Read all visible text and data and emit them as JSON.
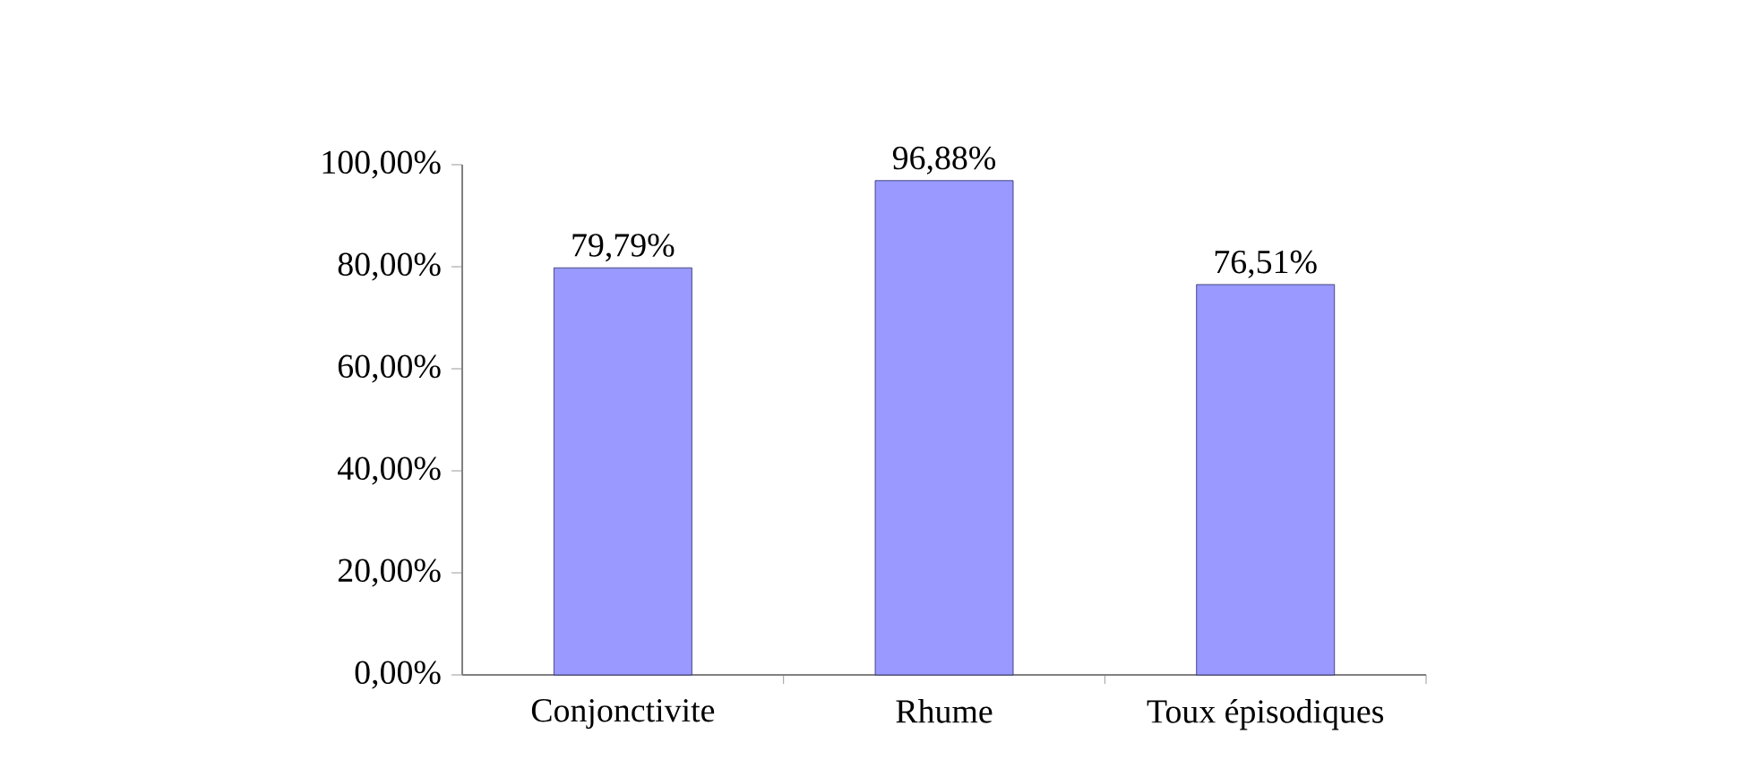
{
  "chart_data": {
    "type": "bar",
    "categories": [
      "Conjonctivite",
      "Rhume",
      "Toux épisodiques"
    ],
    "values": [
      79.79,
      96.88,
      76.51
    ],
    "value_labels": [
      "79,79%",
      "96,88%",
      "76,51%"
    ],
    "color": "#9999ff",
    "ylim": [
      0,
      100
    ],
    "yticks": [
      {
        "value": 0,
        "label": "0,00%"
      },
      {
        "value": 20,
        "label": "20,00%"
      },
      {
        "value": 40,
        "label": "40,00%"
      },
      {
        "value": 60,
        "label": "60,00%"
      },
      {
        "value": 80,
        "label": "80,00%"
      },
      {
        "value": 100,
        "label": "100,00%"
      }
    ],
    "grid": false
  }
}
